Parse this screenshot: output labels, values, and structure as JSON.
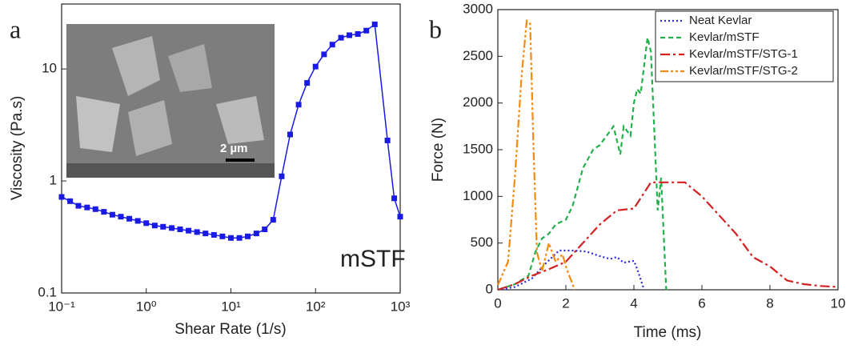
{
  "chart_data": [
    {
      "type": "line",
      "panel_label": "a",
      "x_label": "Shear Rate (1/s)",
      "y_label": "Viscosity (Pa.s)",
      "annotation": "mSTF",
      "inset_label": "2 µm",
      "xlog": true,
      "ylog": true,
      "color": "#1a1ae6",
      "marker": "square",
      "x": [
        0.1,
        0.126,
        0.158,
        0.2,
        0.251,
        0.316,
        0.398,
        0.501,
        0.631,
        0.794,
        1,
        1.26,
        1.58,
        2,
        2.51,
        3.16,
        3.98,
        5.01,
        6.31,
        7.94,
        10,
        12.6,
        15.8,
        20,
        25.1,
        31.6,
        39.8,
        50.1,
        63.1,
        79.4,
        100,
        126,
        158,
        200,
        251,
        316,
        398,
        501,
        708,
        851,
        1000
      ],
      "values": [
        0.72,
        0.66,
        0.6,
        0.58,
        0.56,
        0.53,
        0.5,
        0.48,
        0.46,
        0.44,
        0.42,
        0.4,
        0.39,
        0.38,
        0.37,
        0.36,
        0.35,
        0.34,
        0.33,
        0.32,
        0.31,
        0.31,
        0.32,
        0.34,
        0.37,
        0.45,
        1.1,
        2.6,
        4.8,
        7.5,
        10.5,
        13.5,
        16.5,
        19,
        20,
        20.5,
        22,
        25,
        2.3,
        0.7,
        0.48
      ],
      "xlim": [
        0.1,
        1000
      ],
      "ylim": [
        0.1,
        38
      ],
      "xticks": [
        {
          "value": 0.1,
          "label": "10⁻¹"
        },
        {
          "value": 1,
          "label": "10⁰"
        },
        {
          "value": 10,
          "label": "10¹"
        },
        {
          "value": 100,
          "label": "10²"
        },
        {
          "value": 1000,
          "label": "10³"
        }
      ],
      "yticks": [
        0.1,
        1,
        10
      ]
    },
    {
      "type": "line",
      "panel_label": "b",
      "x_label": "Time (ms)",
      "y_label": "Force (N)",
      "legend": "upper right",
      "xlim": [
        0,
        10
      ],
      "ylim": [
        0,
        3000
      ],
      "xticks": [
        0,
        2,
        4,
        6,
        8,
        10
      ],
      "yticks": [
        0,
        500,
        1000,
        1500,
        2000,
        2500,
        3000
      ],
      "series": [
        {
          "name": "Neat Kevlar",
          "color": "#2b2bdc",
          "dash": "dotted",
          "x": [
            0,
            0.5,
            1,
            1.4,
            1.8,
            2.2,
            2.6,
            3.0,
            3.3,
            3.5,
            3.7,
            4.0,
            4.1,
            4.3
          ],
          "values": [
            0,
            30,
            120,
            280,
            420,
            420,
            410,
            360,
            330,
            350,
            290,
            310,
            220,
            0
          ]
        },
        {
          "name": "Kevlar/mSTF",
          "color": "#22b04a",
          "dash": "dashed",
          "x": [
            0,
            0.5,
            0.9,
            1.1,
            1.3,
            1.5,
            1.7,
            2.0,
            2.2,
            2.5,
            2.8,
            3.0,
            3.2,
            3.4,
            3.5,
            3.6,
            3.7,
            3.9,
            4.0,
            4.1,
            4.2,
            4.4,
            4.5,
            4.7,
            4.8,
            4.95
          ],
          "values": [
            0,
            60,
            150,
            400,
            550,
            600,
            700,
            750,
            900,
            1300,
            1500,
            1550,
            1650,
            1750,
            1600,
            1450,
            1750,
            1650,
            2000,
            2150,
            2100,
            2700,
            2550,
            850,
            1200,
            0
          ]
        },
        {
          "name": "Kevlar/mSTF/STG-1",
          "color": "#d42020",
          "dash": "dashdot",
          "x": [
            0,
            0.5,
            1,
            1.5,
            2,
            2.5,
            3,
            3.5,
            4,
            4.5,
            5,
            5.5,
            6,
            6.5,
            7,
            7.5,
            8,
            8.5,
            9,
            9.5,
            10
          ],
          "values": [
            0,
            60,
            150,
            220,
            300,
            500,
            700,
            850,
            870,
            1150,
            1150,
            1150,
            1000,
            800,
            600,
            350,
            250,
            100,
            60,
            40,
            30
          ]
        },
        {
          "name": "Kevlar/mSTF/STG-2",
          "color": "#f08a12",
          "dash": "dashdotdot",
          "x": [
            0,
            0.3,
            0.5,
            0.7,
            0.85,
            0.95,
            1.05,
            1.15,
            1.3,
            1.5,
            1.7,
            1.9,
            2.0,
            2.1,
            2.2,
            2.25
          ],
          "values": [
            50,
            300,
            1200,
            2300,
            2880,
            2850,
            1500,
            400,
            200,
            500,
            300,
            380,
            250,
            150,
            60,
            0
          ]
        }
      ]
    }
  ]
}
